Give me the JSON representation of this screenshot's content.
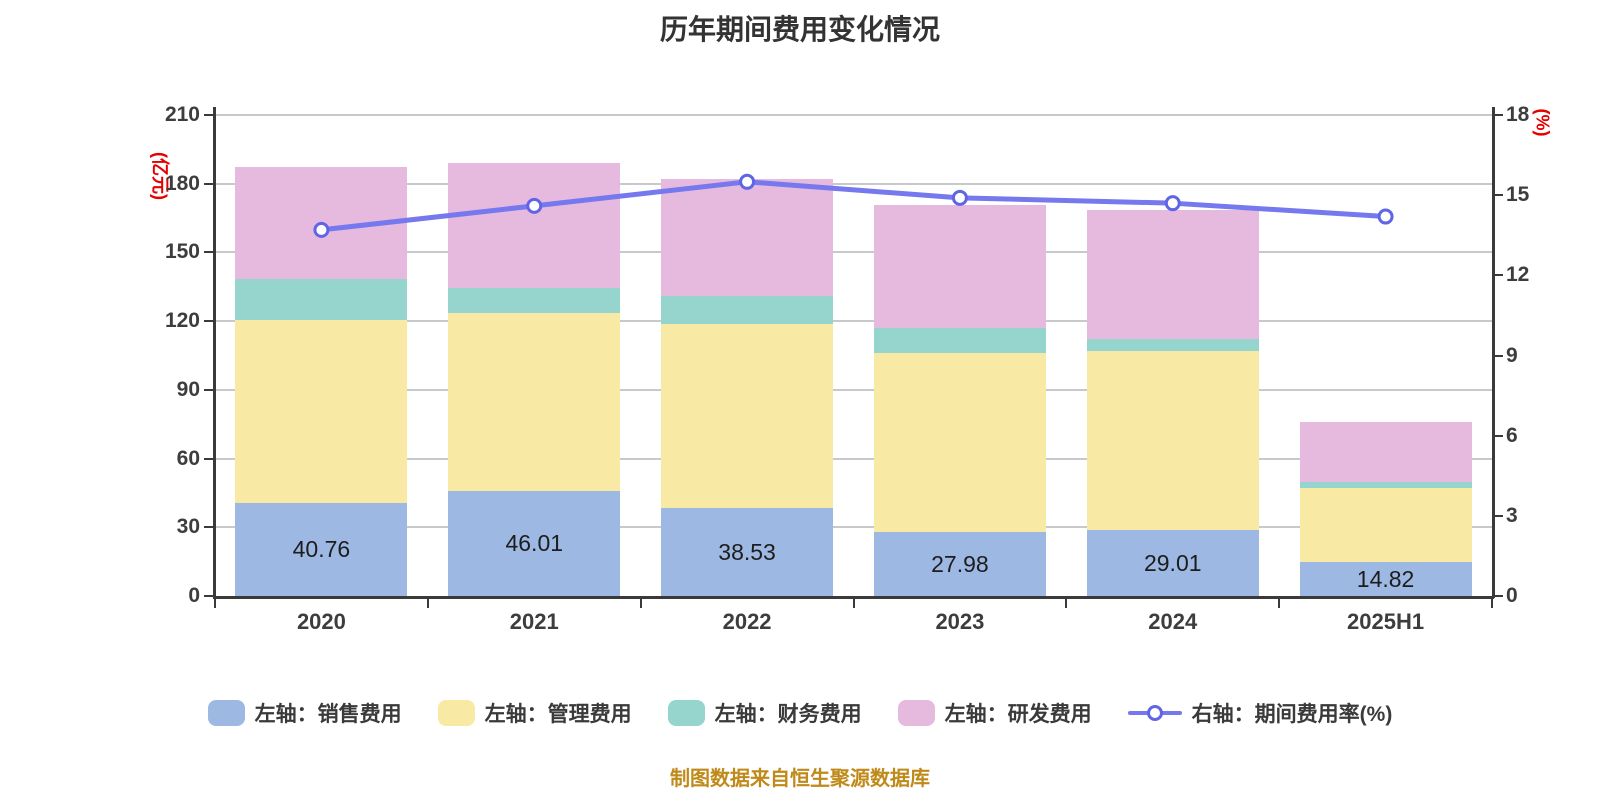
{
  "title": "历年期间费用变化情况",
  "footer": "制图数据来自恒生聚源数据库",
  "left_axis": {
    "unit": "(亿元)",
    "min": 0,
    "max": 210,
    "step": 30
  },
  "right_axis": {
    "unit": "(%)",
    "min": 0,
    "max": 18,
    "step": 3
  },
  "colors": {
    "sales_bar": "#9DB8E2",
    "admin_bar": "#F8E9A4",
    "finance_bar": "#96D4CE",
    "rd_bar": "#E6B9DE",
    "rate_line": "#7678EE",
    "rate_marker_stroke": "#6065E5",
    "axis": "#3A3A3A",
    "grid": "#C7C9CC",
    "axis_unit_text": "#E60000",
    "footer_text": "#C08A1A"
  },
  "chart_data": {
    "type": "bar",
    "subtype": "stacked-bar-with-line",
    "categories": [
      "2020",
      "2021",
      "2022",
      "2023",
      "2024",
      "2025H1"
    ],
    "series": [
      {
        "name": "左轴：销售费用",
        "type": "bar",
        "axis": "left",
        "color": "#9DB8E2",
        "values": [
          40.76,
          46.01,
          38.53,
          27.98,
          29.01,
          14.82
        ]
      },
      {
        "name": "左轴：管理费用",
        "type": "bar",
        "axis": "left",
        "color": "#F8E9A4",
        "values": [
          79.7,
          77.4,
          80.3,
          78.2,
          78.1,
          32.2
        ]
      },
      {
        "name": "左轴：财务费用",
        "type": "bar",
        "axis": "left",
        "color": "#96D4CE",
        "values": [
          17.8,
          11.0,
          12.2,
          11.0,
          5.0,
          2.9
        ]
      },
      {
        "name": "左轴：研发费用",
        "type": "bar",
        "axis": "left",
        "color": "#E6B9DE",
        "values": [
          49.2,
          54.5,
          51.0,
          53.5,
          56.5,
          26.2
        ]
      },
      {
        "name": "右轴：期间费用率(%)",
        "type": "line",
        "axis": "right",
        "color": "#7678EE",
        "values": [
          13.7,
          14.6,
          15.5,
          14.9,
          14.7,
          14.2
        ]
      }
    ],
    "bar_labels": [
      "40.76",
      "46.01",
      "38.53",
      "27.98",
      "29.01",
      "14.82"
    ],
    "left_ticks": [
      0,
      30,
      60,
      90,
      120,
      150,
      180,
      210
    ],
    "right_ticks": [
      0,
      3,
      6,
      9,
      12,
      15,
      18
    ],
    "grid": true,
    "legend_position": "bottom"
  }
}
